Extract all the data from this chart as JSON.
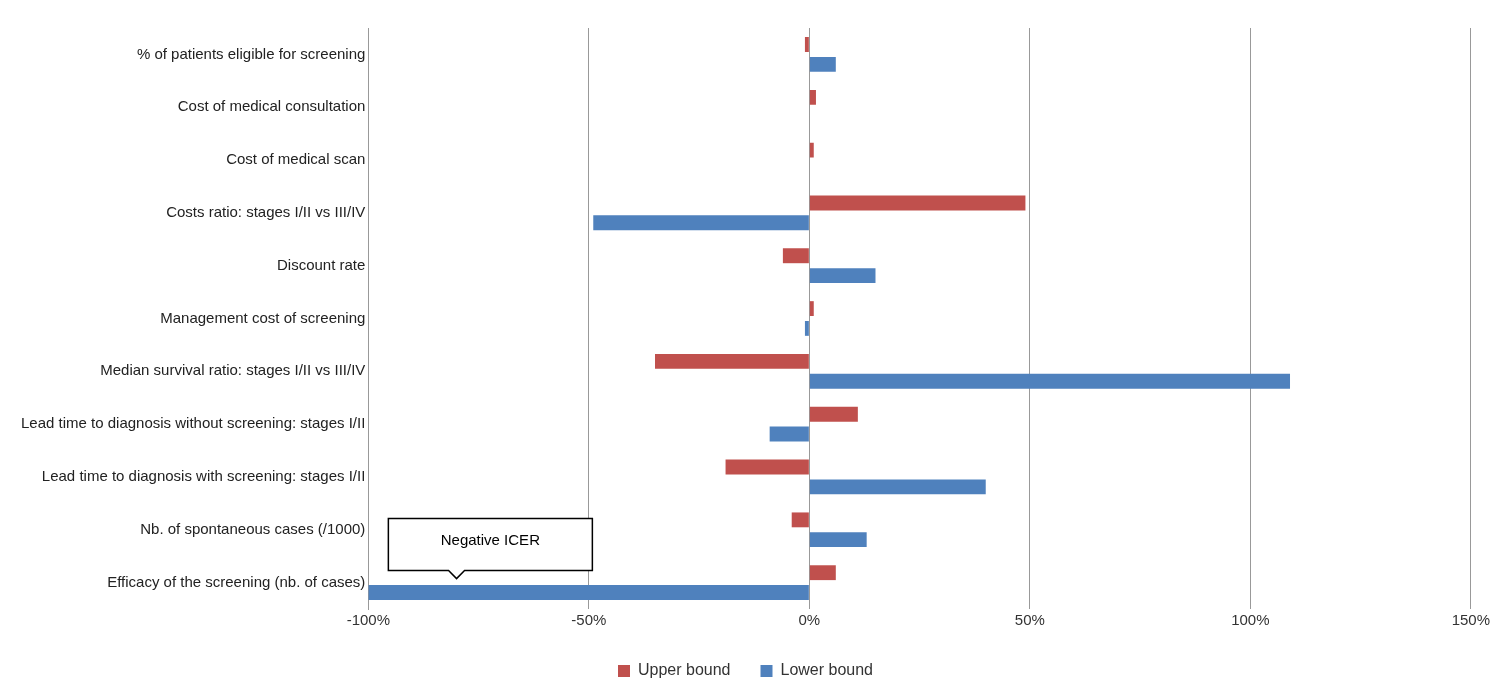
{
  "chart_data": {
    "type": "bar",
    "orientation": "horizontal",
    "categories": [
      "% of patients eligible for screening",
      "Cost of medical consultation",
      "Cost of medical scan",
      "Costs ratio: stages I/II vs III/IV",
      "Discount rate",
      "Management cost of screening",
      "Median survival ratio: stages I/II vs III/IV",
      "Lead time to diagnosis without screening: stages I/II",
      "Lead time to diagnosis with screening: stages I/II",
      "Nb. of spontaneous cases (/1000)",
      "Efficacy of the screening (nb. of cases)"
    ],
    "series": [
      {
        "name": "Upper bound",
        "color": "#c0504d",
        "values": [
          -1,
          1.5,
          1,
          49,
          -6,
          1,
          -35,
          11,
          -19,
          -4,
          6
        ]
      },
      {
        "name": "Lower bound",
        "color": "#4f81bd",
        "values": [
          6,
          null,
          null,
          -49,
          15,
          -1,
          109,
          -9,
          40,
          13,
          -100
        ]
      }
    ],
    "xlim": [
      -100,
      150
    ],
    "xticks": [
      {
        "value": -100,
        "label": "-100%"
      },
      {
        "value": -50,
        "label": "-50%"
      },
      {
        "value": 0,
        "label": "0%"
      },
      {
        "value": 50,
        "label": "50%"
      },
      {
        "value": 100,
        "label": "100%"
      },
      {
        "value": 150,
        "label": "150%"
      }
    ],
    "grid": "x",
    "legend": "bottom",
    "annotations": [
      {
        "text": "Negative ICER",
        "x": -80,
        "y": "Efficacy of the screening (nb. of cases)"
      }
    ]
  }
}
